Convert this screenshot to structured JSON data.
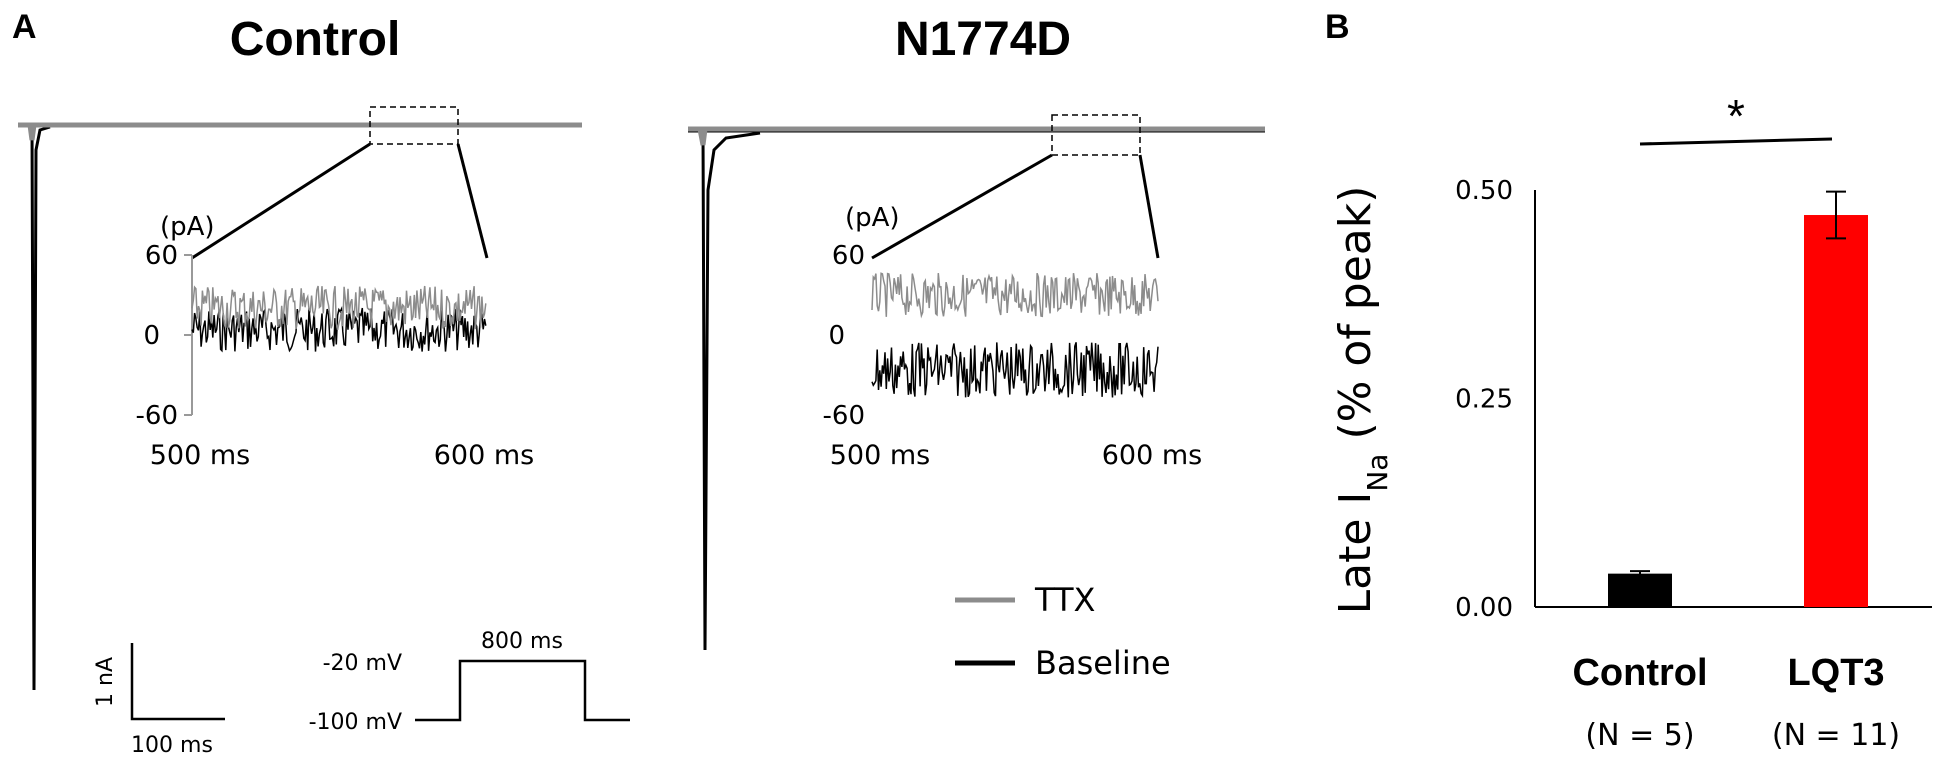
{
  "panel_a_label": "A",
  "panel_b_label": "B",
  "traces": {
    "left_title": "Control",
    "right_title": "N1774D",
    "inset_unit": "(pA)",
    "inset_yticks": [
      "60",
      "0",
      "-60"
    ],
    "inset_time_start": "500 ms",
    "inset_time_end": "600 ms",
    "colors": {
      "TTX": "#8c8c8c",
      "Baseline": "#000000"
    }
  },
  "legend": {
    "items": [
      "TTX",
      "Baseline"
    ]
  },
  "scale_bar": {
    "current": "1 nA",
    "time": "100 ms"
  },
  "protocol": {
    "high_level": "-20 mV",
    "low_level": "-100 mV",
    "duration": "800 ms"
  },
  "chart_data": {
    "type": "bar",
    "categories": [
      "Control",
      "LQT3"
    ],
    "category_subtitles": [
      "(N = 5)",
      "(N = 11)"
    ],
    "values": [
      0.04,
      0.47
    ],
    "errors": [
      0.003,
      0.028
    ],
    "colors": [
      "#000000",
      "#ff0000"
    ],
    "ylabel_main": "Late I",
    "ylabel_sub": "Na",
    "ylabel_tail": " (% of peak)",
    "ylim": [
      0,
      0.5
    ],
    "yticks": [
      "0.00",
      "0.25",
      "0.50"
    ],
    "significance": "*"
  }
}
